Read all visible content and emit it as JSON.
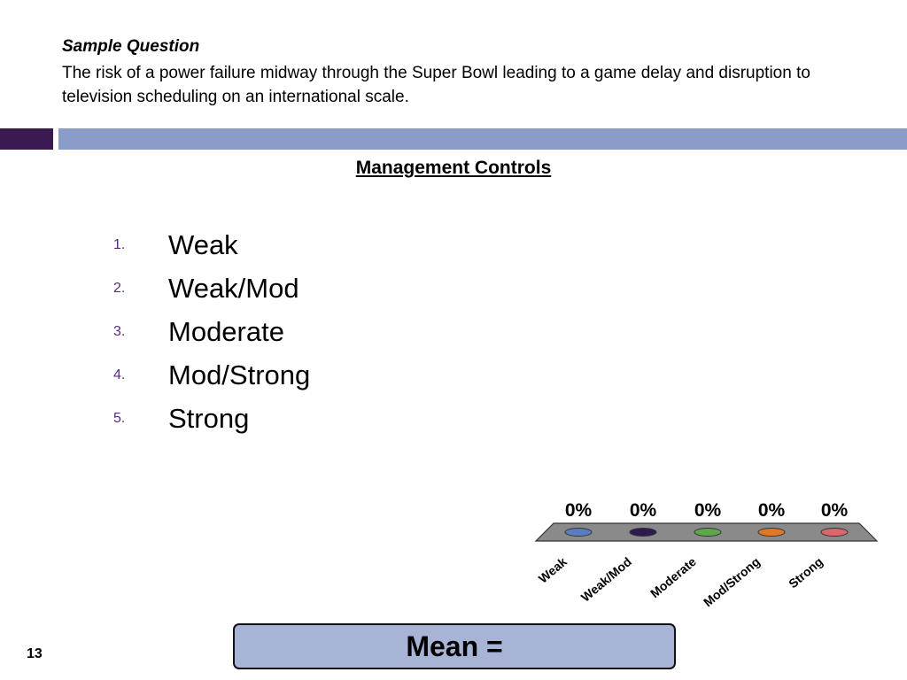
{
  "question": {
    "title": "Sample Question",
    "text": "The risk of a power failure midway through the Super Bowl leading to a game delay and disruption to television scheduling on an international scale."
  },
  "section_title": "Management Controls",
  "options": [
    {
      "number": "1.",
      "label": "Weak"
    },
    {
      "number": "2.",
      "label": "Weak/Mod"
    },
    {
      "number": "3.",
      "label": "Moderate"
    },
    {
      "number": "4.",
      "label": "Mod/Strong"
    },
    {
      "number": "5.",
      "label": "Strong"
    }
  ],
  "chart_data": {
    "type": "bar",
    "categories": [
      "Weak",
      "Weak/Mod",
      "Moderate",
      "Mod/Strong",
      "Strong"
    ],
    "values": [
      0,
      0,
      0,
      0,
      0
    ],
    "data_labels": [
      "0%",
      "0%",
      "0%",
      "0%",
      "0%"
    ],
    "colors": [
      "#5b7dbf",
      "#2e1a52",
      "#5fa84a",
      "#e07828",
      "#d9676f"
    ],
    "floor_color": "#8a8a8a"
  },
  "mean_label": "Mean =",
  "page_number": "13"
}
